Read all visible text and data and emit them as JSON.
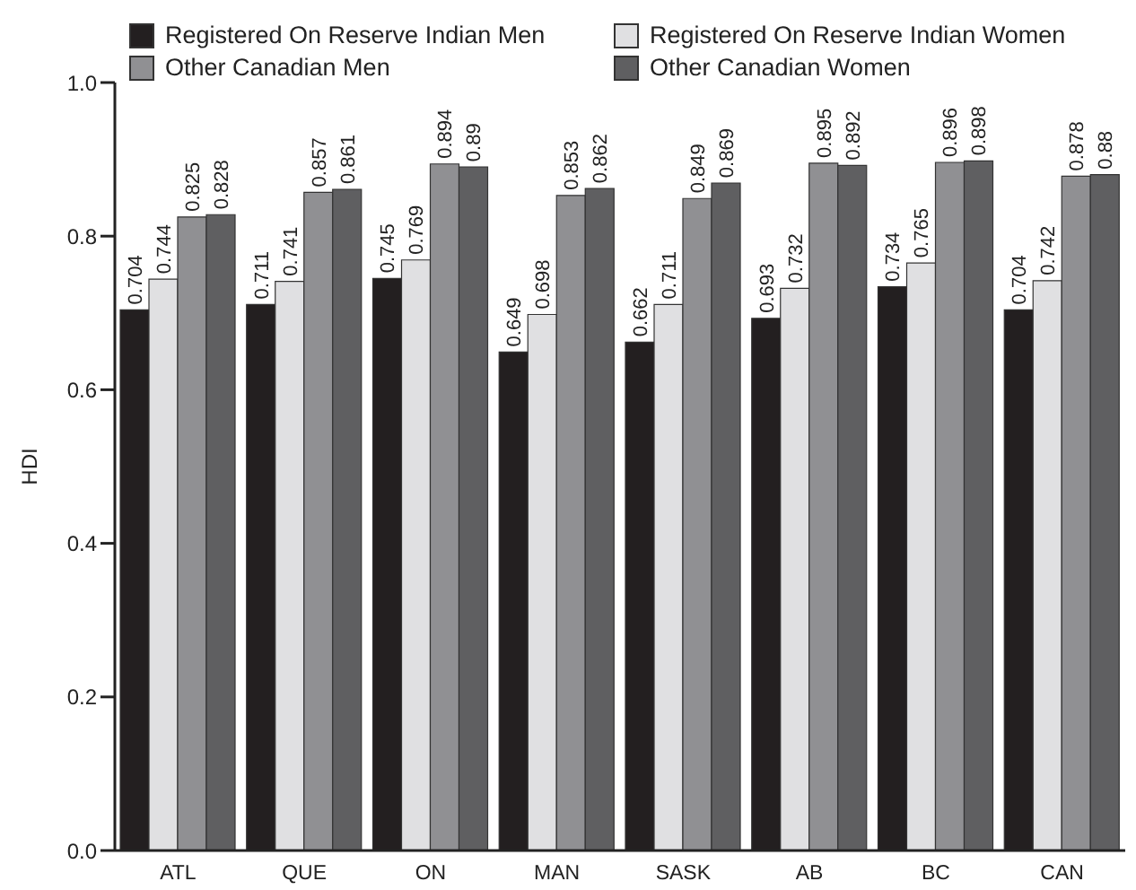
{
  "chart_data": {
    "type": "bar",
    "ylabel": "HDI",
    "categories": [
      "ATL",
      "QUE",
      "ON",
      "MAN",
      "SASK",
      "AB",
      "BC",
      "CAN"
    ],
    "series": [
      {
        "name": "Registered On Reserve Indian Men",
        "color": "#231f20",
        "values": [
          0.704,
          0.711,
          0.745,
          0.649,
          0.662,
          0.693,
          0.734,
          0.704
        ]
      },
      {
        "name": "Registered On Reserve Indian Women",
        "color": "#e0e0e2",
        "values": [
          0.744,
          0.741,
          0.769,
          0.698,
          0.711,
          0.732,
          0.765,
          0.742
        ]
      },
      {
        "name": "Other Canadian Men",
        "color": "#909093",
        "values": [
          0.825,
          0.857,
          0.894,
          0.853,
          0.849,
          0.895,
          0.896,
          0.878
        ]
      },
      {
        "name": "Other Canadian Women",
        "color": "#5f5f61",
        "values": [
          0.828,
          0.861,
          0.89,
          0.862,
          0.869,
          0.892,
          0.898,
          0.88
        ]
      }
    ],
    "ylim": [
      0,
      1
    ],
    "yticks": [
      {
        "value": 0,
        "label": "0.0"
      },
      {
        "value": 0.2,
        "label": "0.2"
      },
      {
        "value": 0.4,
        "label": "0.4"
      },
      {
        "value": 0.6,
        "label": "0.6"
      },
      {
        "value": 0.8,
        "label": "0.8"
      },
      {
        "value": 1,
        "label": "1.0"
      }
    ],
    "data_labels": true,
    "legend": "top",
    "grid": false
  }
}
